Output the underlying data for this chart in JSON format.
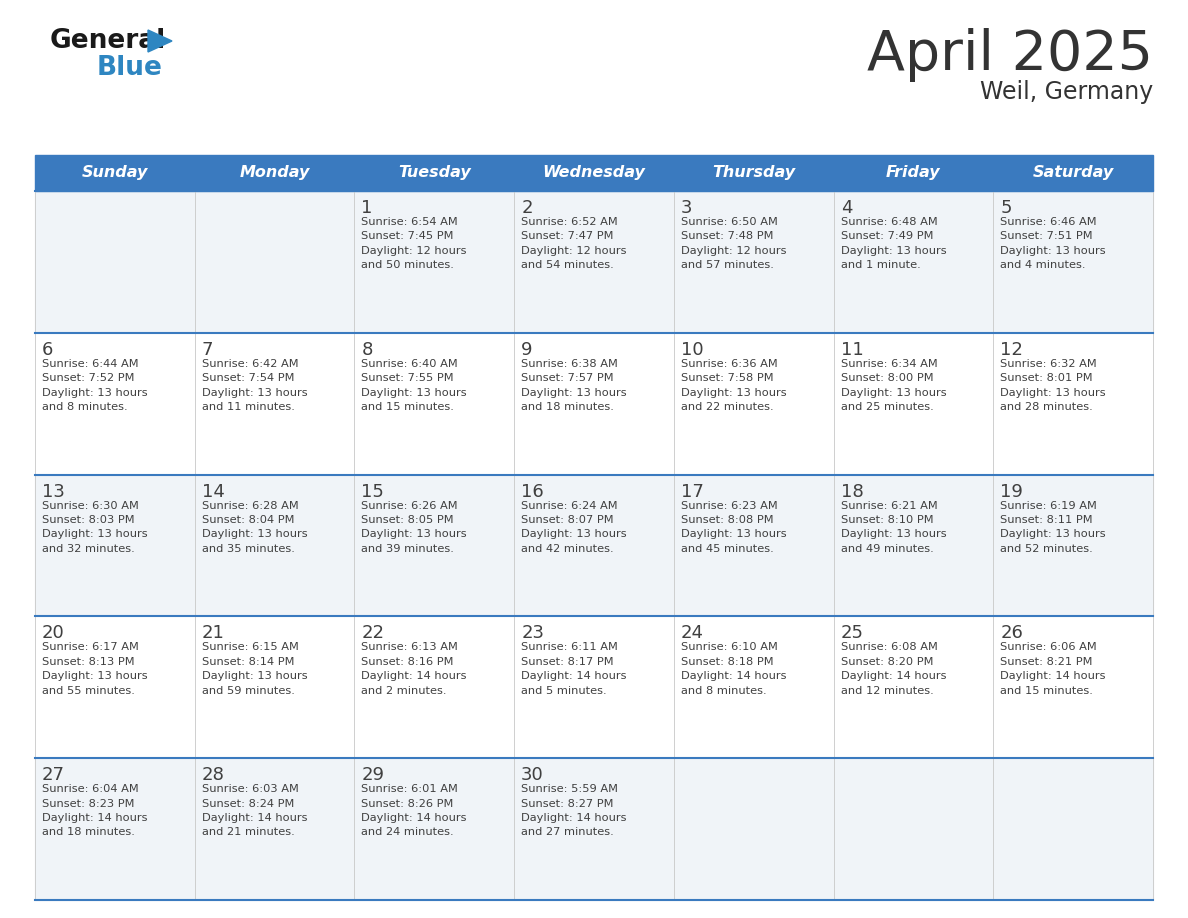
{
  "title": "April 2025",
  "subtitle": "Weil, Germany",
  "header_color": "#3a7abf",
  "header_text_color": "#ffffff",
  "days_of_week": [
    "Sunday",
    "Monday",
    "Tuesday",
    "Wednesday",
    "Thursday",
    "Friday",
    "Saturday"
  ],
  "bg_color": "#ffffff",
  "row_bg": [
    "#f0f4f8",
    "#ffffff",
    "#f0f4f8",
    "#ffffff",
    "#f0f4f8"
  ],
  "divider_color": "#3a7abf",
  "text_color": "#404040",
  "title_color": "#333333",
  "logo_black": "#1a1a1a",
  "logo_blue": "#2e86c1",
  "calendar": [
    [
      {
        "day": "",
        "info": ""
      },
      {
        "day": "",
        "info": ""
      },
      {
        "day": "1",
        "info": "Sunrise: 6:54 AM\nSunset: 7:45 PM\nDaylight: 12 hours\nand 50 minutes."
      },
      {
        "day": "2",
        "info": "Sunrise: 6:52 AM\nSunset: 7:47 PM\nDaylight: 12 hours\nand 54 minutes."
      },
      {
        "day": "3",
        "info": "Sunrise: 6:50 AM\nSunset: 7:48 PM\nDaylight: 12 hours\nand 57 minutes."
      },
      {
        "day": "4",
        "info": "Sunrise: 6:48 AM\nSunset: 7:49 PM\nDaylight: 13 hours\nand 1 minute."
      },
      {
        "day": "5",
        "info": "Sunrise: 6:46 AM\nSunset: 7:51 PM\nDaylight: 13 hours\nand 4 minutes."
      }
    ],
    [
      {
        "day": "6",
        "info": "Sunrise: 6:44 AM\nSunset: 7:52 PM\nDaylight: 13 hours\nand 8 minutes."
      },
      {
        "day": "7",
        "info": "Sunrise: 6:42 AM\nSunset: 7:54 PM\nDaylight: 13 hours\nand 11 minutes."
      },
      {
        "day": "8",
        "info": "Sunrise: 6:40 AM\nSunset: 7:55 PM\nDaylight: 13 hours\nand 15 minutes."
      },
      {
        "day": "9",
        "info": "Sunrise: 6:38 AM\nSunset: 7:57 PM\nDaylight: 13 hours\nand 18 minutes."
      },
      {
        "day": "10",
        "info": "Sunrise: 6:36 AM\nSunset: 7:58 PM\nDaylight: 13 hours\nand 22 minutes."
      },
      {
        "day": "11",
        "info": "Sunrise: 6:34 AM\nSunset: 8:00 PM\nDaylight: 13 hours\nand 25 minutes."
      },
      {
        "day": "12",
        "info": "Sunrise: 6:32 AM\nSunset: 8:01 PM\nDaylight: 13 hours\nand 28 minutes."
      }
    ],
    [
      {
        "day": "13",
        "info": "Sunrise: 6:30 AM\nSunset: 8:03 PM\nDaylight: 13 hours\nand 32 minutes."
      },
      {
        "day": "14",
        "info": "Sunrise: 6:28 AM\nSunset: 8:04 PM\nDaylight: 13 hours\nand 35 minutes."
      },
      {
        "day": "15",
        "info": "Sunrise: 6:26 AM\nSunset: 8:05 PM\nDaylight: 13 hours\nand 39 minutes."
      },
      {
        "day": "16",
        "info": "Sunrise: 6:24 AM\nSunset: 8:07 PM\nDaylight: 13 hours\nand 42 minutes."
      },
      {
        "day": "17",
        "info": "Sunrise: 6:23 AM\nSunset: 8:08 PM\nDaylight: 13 hours\nand 45 minutes."
      },
      {
        "day": "18",
        "info": "Sunrise: 6:21 AM\nSunset: 8:10 PM\nDaylight: 13 hours\nand 49 minutes."
      },
      {
        "day": "19",
        "info": "Sunrise: 6:19 AM\nSunset: 8:11 PM\nDaylight: 13 hours\nand 52 minutes."
      }
    ],
    [
      {
        "day": "20",
        "info": "Sunrise: 6:17 AM\nSunset: 8:13 PM\nDaylight: 13 hours\nand 55 minutes."
      },
      {
        "day": "21",
        "info": "Sunrise: 6:15 AM\nSunset: 8:14 PM\nDaylight: 13 hours\nand 59 minutes."
      },
      {
        "day": "22",
        "info": "Sunrise: 6:13 AM\nSunset: 8:16 PM\nDaylight: 14 hours\nand 2 minutes."
      },
      {
        "day": "23",
        "info": "Sunrise: 6:11 AM\nSunset: 8:17 PM\nDaylight: 14 hours\nand 5 minutes."
      },
      {
        "day": "24",
        "info": "Sunrise: 6:10 AM\nSunset: 8:18 PM\nDaylight: 14 hours\nand 8 minutes."
      },
      {
        "day": "25",
        "info": "Sunrise: 6:08 AM\nSunset: 8:20 PM\nDaylight: 14 hours\nand 12 minutes."
      },
      {
        "day": "26",
        "info": "Sunrise: 6:06 AM\nSunset: 8:21 PM\nDaylight: 14 hours\nand 15 minutes."
      }
    ],
    [
      {
        "day": "27",
        "info": "Sunrise: 6:04 AM\nSunset: 8:23 PM\nDaylight: 14 hours\nand 18 minutes."
      },
      {
        "day": "28",
        "info": "Sunrise: 6:03 AM\nSunset: 8:24 PM\nDaylight: 14 hours\nand 21 minutes."
      },
      {
        "day": "29",
        "info": "Sunrise: 6:01 AM\nSunset: 8:26 PM\nDaylight: 14 hours\nand 24 minutes."
      },
      {
        "day": "30",
        "info": "Sunrise: 5:59 AM\nSunset: 8:27 PM\nDaylight: 14 hours\nand 27 minutes."
      },
      {
        "day": "",
        "info": ""
      },
      {
        "day": "",
        "info": ""
      },
      {
        "day": "",
        "info": ""
      }
    ]
  ]
}
